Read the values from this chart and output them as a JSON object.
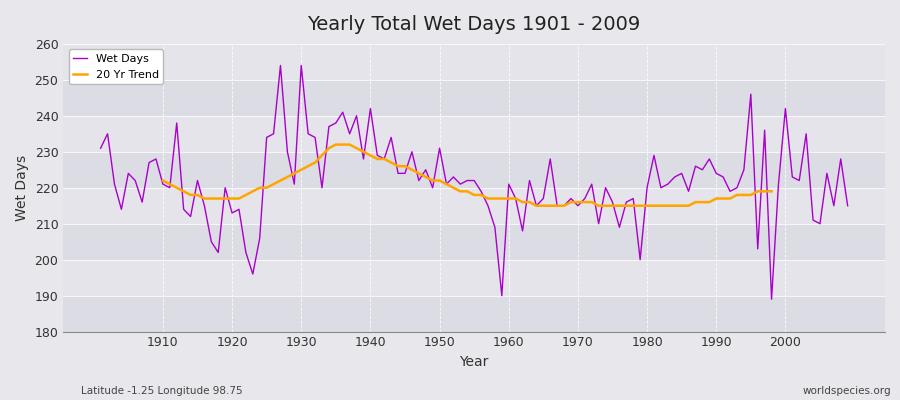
{
  "title": "Yearly Total Wet Days 1901 - 2009",
  "xlabel": "Year",
  "ylabel": "Wet Days",
  "footnote_left": "Latitude -1.25 Longitude 98.75",
  "footnote_right": "worldspecies.org",
  "ylim": [
    180,
    260
  ],
  "yticks": [
    180,
    190,
    200,
    210,
    220,
    230,
    240,
    250,
    260
  ],
  "xticks": [
    1910,
    1920,
    1930,
    1940,
    1950,
    1960,
    1970,
    1980,
    1990,
    2000
  ],
  "wet_days_color": "#AA00CC",
  "trend_color": "#FFA500",
  "bg_color": "#E8E8EC",
  "plot_bg_color": "#E4E4EA",
  "grid_color": "#FFFFFF",
  "legend_label_wet": "Wet Days",
  "legend_label_trend": "20 Yr Trend",
  "years": [
    1901,
    1902,
    1903,
    1904,
    1905,
    1906,
    1907,
    1908,
    1909,
    1910,
    1911,
    1912,
    1913,
    1914,
    1915,
    1916,
    1917,
    1918,
    1919,
    1920,
    1921,
    1922,
    1923,
    1924,
    1925,
    1926,
    1927,
    1928,
    1929,
    1930,
    1931,
    1932,
    1933,
    1934,
    1935,
    1936,
    1937,
    1938,
    1939,
    1940,
    1941,
    1942,
    1943,
    1944,
    1945,
    1946,
    1947,
    1948,
    1949,
    1950,
    1951,
    1952,
    1953,
    1954,
    1955,
    1956,
    1957,
    1958,
    1959,
    1960,
    1961,
    1962,
    1963,
    1964,
    1965,
    1966,
    1967,
    1968,
    1969,
    1970,
    1971,
    1972,
    1973,
    1974,
    1975,
    1976,
    1977,
    1978,
    1979,
    1980,
    1981,
    1982,
    1983,
    1984,
    1985,
    1986,
    1987,
    1988,
    1989,
    1990,
    1991,
    1992,
    1993,
    1994,
    1995,
    1996,
    1997,
    1998,
    1999,
    2000,
    2001,
    2002,
    2003,
    2004,
    2005,
    2006,
    2007,
    2008,
    2009
  ],
  "wet_days": [
    231,
    235,
    221,
    214,
    224,
    222,
    216,
    227,
    228,
    221,
    220,
    238,
    214,
    212,
    222,
    215,
    205,
    202,
    220,
    213,
    214,
    202,
    196,
    206,
    234,
    235,
    254,
    230,
    221,
    254,
    235,
    234,
    220,
    237,
    238,
    241,
    235,
    240,
    228,
    242,
    229,
    228,
    234,
    224,
    224,
    230,
    222,
    225,
    220,
    231,
    221,
    223,
    221,
    222,
    222,
    219,
    215,
    209,
    190,
    221,
    217,
    208,
    222,
    215,
    217,
    228,
    215,
    215,
    217,
    215,
    217,
    221,
    210,
    220,
    216,
    209,
    216,
    217,
    200,
    220,
    229,
    220,
    221,
    223,
    224,
    219,
    226,
    225,
    228,
    224,
    223,
    219,
    220,
    225,
    246,
    203,
    236,
    189,
    221,
    242,
    223,
    222,
    235,
    211,
    210,
    224,
    215,
    228,
    215
  ],
  "trend": [
    null,
    null,
    null,
    null,
    null,
    null,
    null,
    null,
    null,
    222,
    221,
    220,
    219,
    218,
    218,
    217,
    217,
    217,
    217,
    217,
    217,
    218,
    219,
    220,
    220,
    221,
    222,
    223,
    224,
    225,
    226,
    227,
    229,
    231,
    232,
    232,
    232,
    231,
    230,
    229,
    228,
    228,
    227,
    226,
    226,
    225,
    224,
    223,
    222,
    222,
    221,
    220,
    219,
    219,
    218,
    218,
    217,
    217,
    217,
    217,
    217,
    216,
    216,
    215,
    215,
    215,
    215,
    215,
    216,
    216,
    216,
    216,
    215,
    215,
    215,
    215,
    215,
    215,
    215,
    215,
    215,
    215,
    215,
    215,
    215,
    215,
    216,
    216,
    216,
    217,
    217,
    217,
    218,
    218,
    218,
    219,
    219,
    219,
    null,
    null,
    null,
    null,
    null,
    null,
    null,
    null,
    null,
    null,
    null
  ]
}
